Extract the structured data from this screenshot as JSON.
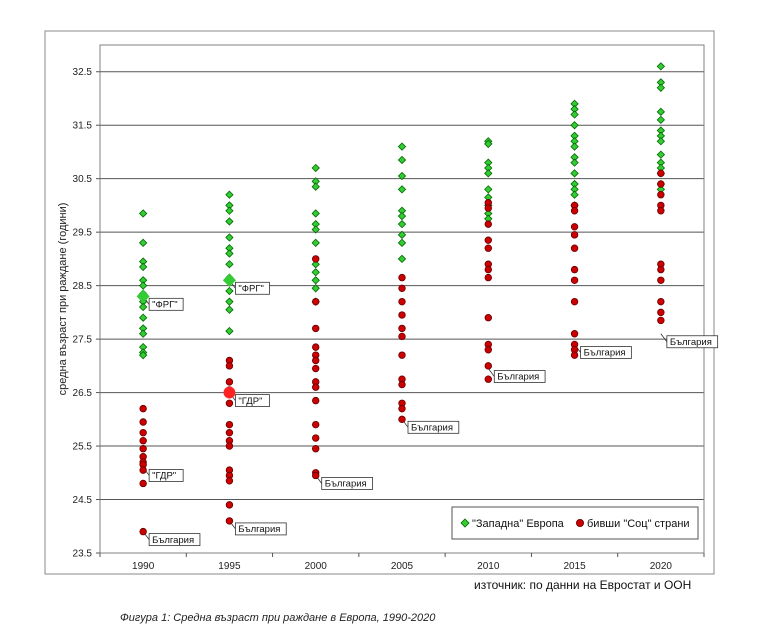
{
  "chart_data": {
    "type": "scatter",
    "ylabel": "средна възраст при раждане (години)",
    "xlabel": "",
    "ylim": [
      23.5,
      33
    ],
    "yticks": [
      23.5,
      24.5,
      25.5,
      26.5,
      27.5,
      28.5,
      29.5,
      30.5,
      31.5,
      32.5
    ],
    "ytick_labels": [
      "23.5",
      "24.5",
      "25.5",
      "26.5",
      "27.5",
      "28.5",
      "29.5",
      "30.5",
      "31.5",
      "32.5"
    ],
    "categories": [
      "1990",
      "1995",
      "2000",
      "2005",
      "2010",
      "2015",
      "2020"
    ],
    "grid": "horizontal",
    "legend_position": "bottom-right",
    "series": [
      {
        "name": "\"Западна\" Европа",
        "color": "#33cc33",
        "values": {
          "1990": [
            29.85,
            29.3,
            28.95,
            28.85,
            28.6,
            28.5,
            28.35,
            28.2,
            28.1,
            27.9,
            27.7,
            27.6,
            27.35,
            27.25,
            27.2
          ],
          "1995": [
            30.2,
            30.0,
            29.9,
            29.7,
            29.4,
            29.2,
            29.1,
            28.9,
            28.65,
            28.4,
            28.2,
            28.05,
            27.65
          ],
          "2000": [
            30.7,
            30.45,
            30.35,
            29.85,
            29.65,
            29.55,
            29.3,
            28.9,
            28.75,
            28.6,
            28.45,
            28.2
          ],
          "2005": [
            31.1,
            30.85,
            30.55,
            30.3,
            29.9,
            29.8,
            29.65,
            29.45,
            29.3,
            29.0
          ],
          "2010": [
            31.2,
            31.15,
            30.8,
            30.7,
            30.6,
            30.3,
            30.15,
            30.0,
            29.85,
            29.75
          ],
          "2015": [
            31.9,
            31.8,
            31.7,
            31.5,
            31.3,
            31.2,
            31.1,
            30.9,
            30.8,
            30.6,
            30.4,
            30.3,
            30.2,
            30.0
          ],
          "2020": [
            32.6,
            32.3,
            32.2,
            31.75,
            31.6,
            31.4,
            31.3,
            31.2,
            30.95,
            30.8,
            30.7,
            30.6,
            30.4,
            30.3
          ]
        }
      },
      {
        "name": "бивши \"Соц\" страни",
        "color": "#cc0000",
        "values": {
          "1990": [
            26.2,
            25.95,
            25.75,
            25.6,
            25.45,
            25.3,
            25.2,
            25.15,
            25.05,
            24.8,
            23.9
          ],
          "1995": [
            27.1,
            27.0,
            26.7,
            26.55,
            26.5,
            26.3,
            25.9,
            25.75,
            25.6,
            25.5,
            25.05,
            24.95,
            24.85,
            24.4,
            24.1
          ],
          "2000": [
            29.0,
            28.2,
            27.7,
            27.35,
            27.2,
            27.1,
            26.95,
            26.7,
            26.6,
            26.35,
            25.9,
            25.65,
            25.45,
            25.0,
            24.95
          ],
          "2005": [
            28.65,
            28.45,
            28.2,
            27.95,
            27.7,
            27.55,
            27.2,
            26.75,
            26.65,
            26.3,
            26.2,
            26.0
          ],
          "2010": [
            30.05,
            29.95,
            29.65,
            29.35,
            29.2,
            28.9,
            28.8,
            28.65,
            27.9,
            27.4,
            27.3,
            27.0,
            26.75
          ],
          "2015": [
            30.0,
            29.9,
            29.6,
            29.45,
            29.2,
            28.8,
            28.6,
            28.2,
            27.6,
            27.4,
            27.3,
            27.2
          ],
          "2020": [
            30.6,
            30.4,
            30.2,
            30.0,
            29.9,
            28.9,
            28.8,
            28.6,
            28.2,
            28.0,
            27.85
          ]
        }
      }
    ],
    "highlights": [
      {
        "category": "1990",
        "series": 0,
        "value": 28.3,
        "size": "large"
      },
      {
        "category": "1995",
        "series": 0,
        "value": 28.6,
        "size": "large"
      },
      {
        "category": "1995",
        "series": 1,
        "value": 26.5,
        "size": "large"
      }
    ],
    "annotations": [
      {
        "text": "\"ФРГ\"",
        "category": "1990",
        "value": 28.3
      },
      {
        "text": "\"ГДР\"",
        "category": "1990",
        "value": 25.1
      },
      {
        "text": "България",
        "category": "1990",
        "value": 23.9
      },
      {
        "text": "\"ФРГ\"",
        "category": "1995",
        "value": 28.6
      },
      {
        "text": "\"ГДР\"",
        "category": "1995",
        "value": 26.5
      },
      {
        "text": "България",
        "category": "1995",
        "value": 24.1
      },
      {
        "text": "България",
        "category": "2000",
        "value": 24.95
      },
      {
        "text": "България",
        "category": "2005",
        "value": 26.0
      },
      {
        "text": "България",
        "category": "2010",
        "value": 26.95
      },
      {
        "text": "България",
        "category": "2015",
        "value": 27.4
      },
      {
        "text": "България",
        "category": "2020",
        "value": 27.6
      }
    ],
    "source": "източник: по данни на Евростат и ООН"
  },
  "caption": "Фигура 1: Средна възраст при раждане в Европа, 1990-2020"
}
